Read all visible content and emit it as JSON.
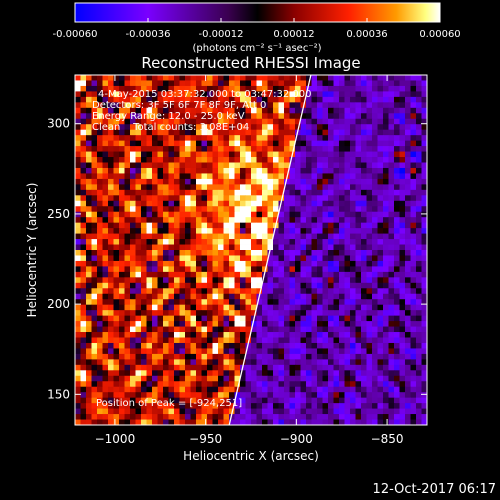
{
  "chart_data": {
    "type": "heatmap",
    "title": "Reconstructed RHESSI Image",
    "xlabel": "Heliocentric X (arcsec)",
    "ylabel": "Heliocentric Y (arcsec)",
    "xlim": [
      -1022,
      -828
    ],
    "ylim": [
      133,
      327
    ],
    "x_ticks": [
      -1000,
      -950,
      -900,
      -850
    ],
    "y_ticks": [
      150,
      200,
      250,
      300
    ],
    "colorbar": {
      "range": [
        -0.0006,
        0.0006
      ],
      "ticks": [
        -0.0006,
        -0.00036,
        -0.00012,
        0.00012,
        0.00036,
        0.0006
      ],
      "tick_labels": [
        "-0.00060",
        "-0.00036",
        "-0.00012",
        "0.00012",
        "0.00036",
        "0.00060"
      ],
      "unit_label": "(photons cm⁻² s⁻¹ asec⁻²)",
      "colors": [
        "#0000ff",
        "#7a00ff",
        "#5a0070",
        "#000000",
        "#8a0000",
        "#ff2000",
        "#ff9a00",
        "#ffff80",
        "#ffffff"
      ]
    },
    "annotations": [
      "4-May-2015 03:37:32.000 to 03:47:32.000",
      "Detectors: 3F 5F 6F 7F 8F 9F, Att 0",
      "Energy Range: 12.0 - 25.0 keV",
      "Clean    Total counts: 3.08E+04"
    ],
    "peak_label": "Position of Peak = [-924,251]",
    "peak": [
      -924,
      251
    ],
    "limb_line": [
      [
        -937,
        133
      ],
      [
        -892,
        327
      ]
    ]
  },
  "footer": {
    "timestamp": "12-Oct-2017 06:17"
  }
}
